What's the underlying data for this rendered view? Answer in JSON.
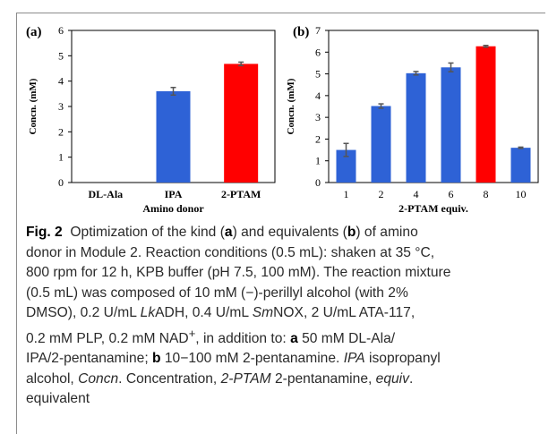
{
  "chart_data": [
    {
      "type": "bar",
      "panel_label": "(a)",
      "categories": [
        "DL-Ala",
        "IPA",
        "2-PTAM"
      ],
      "values": [
        0,
        3.6,
        4.68
      ],
      "errors": [
        0,
        0.15,
        0.07
      ],
      "colors": [
        "#2e62d6",
        "#2e62d6",
        "#ff0000"
      ],
      "xlabel": "Amino donor",
      "ylabel": "Concn. (mM)",
      "ylim": [
        0,
        6
      ],
      "yticks": [
        "0",
        "1",
        "2",
        "3",
        "4",
        "5",
        "6"
      ],
      "grid": false
    },
    {
      "type": "bar",
      "panel_label": "(b)",
      "categories": [
        "1",
        "2",
        "4",
        "6",
        "8",
        "10"
      ],
      "values": [
        1.5,
        3.52,
        5.03,
        5.3,
        6.27,
        1.6
      ],
      "errors": [
        0.3,
        0.1,
        0.08,
        0.2,
        0.04,
        0.03
      ],
      "colors": [
        "#2e62d6",
        "#2e62d6",
        "#2e62d6",
        "#2e62d6",
        "#ff0000",
        "#2e62d6"
      ],
      "xlabel": "2-PTAM equiv.",
      "ylabel": "Concn. (mM)",
      "ylim": [
        0,
        7
      ],
      "yticks": [
        "0",
        "1",
        "2",
        "3",
        "4",
        "5",
        "6",
        "7"
      ],
      "grid": false
    }
  ],
  "caption": {
    "fig_label": "Fig. 2",
    "lines": [
      [
        {
          "t": "Optimization of the kind ("
        },
        {
          "t": "a",
          "b": true
        },
        {
          "t": ") and equivalents ("
        },
        {
          "t": "b",
          "b": true
        },
        {
          "t": ") of amino"
        }
      ],
      [
        {
          "t": "donor in Module 2. Reaction conditions (0.5 mL): shaken at 35 °C,"
        }
      ],
      [
        {
          "t": "800 rpm for 12 h, KPB buffer (pH 7.5, 100 mM). The reaction mixture"
        }
      ],
      [
        {
          "t": "(0.5 mL) was composed of 10 mM (−)-perillyl alcohol (with 2%"
        }
      ],
      [
        {
          "t": "DMSO), 0.2 U/mL "
        },
        {
          "t": "Lk",
          "i": true
        },
        {
          "t": "ADH, 0.4 U/mL "
        },
        {
          "t": "Sm",
          "i": true
        },
        {
          "t": "NOX, 2 U/mL ATA-117,"
        }
      ],
      [
        {
          "t": "0.2 mM PLP, 0.2 mM NAD"
        },
        {
          "t": "+",
          "sup": true
        },
        {
          "t": ", in addition to: "
        },
        {
          "t": "a",
          "b": true
        },
        {
          "t": " 50 mM DL-Ala/"
        }
      ],
      [
        {
          "t": "IPA/2-pentanamine; "
        },
        {
          "t": "b",
          "b": true
        },
        {
          "t": " 10−100 mM 2-pentanamine. "
        },
        {
          "t": "IPA",
          "i": true
        },
        {
          "t": " isopropanyl"
        }
      ],
      [
        {
          "t": "alcohol, "
        },
        {
          "t": "Concn",
          "i": true
        },
        {
          "t": ". Concentration, "
        },
        {
          "t": "2-PTAM",
          "i": true
        },
        {
          "t": " 2-pentanamine, "
        },
        {
          "t": "equiv",
          "i": true
        },
        {
          "t": "."
        }
      ],
      [
        {
          "t": "equivalent"
        }
      ]
    ]
  }
}
